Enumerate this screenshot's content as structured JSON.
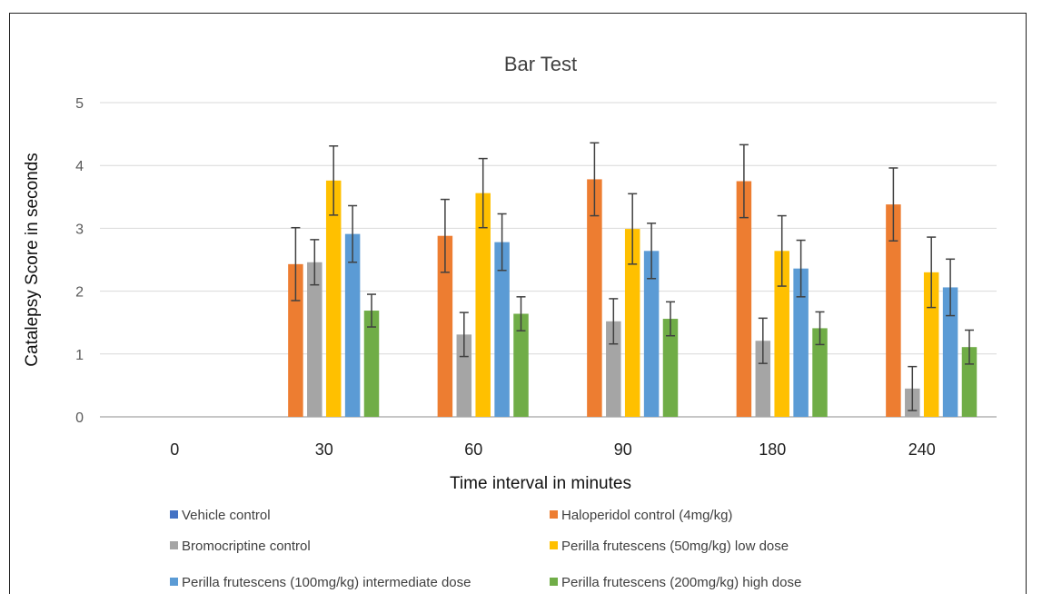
{
  "chart_data": {
    "type": "bar",
    "title": "Bar Test",
    "xlabel": "Time interval in minutes",
    "ylabel": "Catalepsy Score in seconds",
    "ylim": [
      0,
      5
    ],
    "yticks": [
      "0",
      "1",
      "2",
      "3",
      "4",
      "5"
    ],
    "grid": true,
    "legend_position": "bottom",
    "categories": [
      "0",
      "30",
      "60",
      "90",
      "180",
      "240"
    ],
    "series": [
      {
        "name": "Vehicle control",
        "color": "#4472C4",
        "values": [
          0,
          0,
          0,
          0,
          0,
          0
        ],
        "errors": [
          0,
          0,
          0,
          0,
          0,
          0
        ]
      },
      {
        "name": "Haloperidol control (4mg/kg)",
        "color": "#ED7D31",
        "values": [
          0,
          2.43,
          2.88,
          3.78,
          3.75,
          3.38
        ],
        "errors": [
          0,
          0.58,
          0.58,
          0.58,
          0.58,
          0.58
        ]
      },
      {
        "name": "Bromocriptine control",
        "color": "#A5A5A5",
        "values": [
          0,
          2.46,
          1.31,
          1.52,
          1.21,
          0.45
        ],
        "errors": [
          0,
          0.36,
          0.35,
          0.36,
          0.36,
          0.35
        ]
      },
      {
        "name": "Perilla frutescens (50mg/kg) low dose",
        "color": "#FFC000",
        "values": [
          0,
          3.76,
          3.56,
          2.99,
          2.64,
          2.3
        ],
        "errors": [
          0,
          0.55,
          0.55,
          0.56,
          0.56,
          0.56
        ]
      },
      {
        "name": "Perilla frutescens (100mg/kg) intermediate dose",
        "color": "#5B9BD5",
        "values": [
          0,
          2.91,
          2.78,
          2.64,
          2.36,
          2.06
        ],
        "errors": [
          0,
          0.45,
          0.45,
          0.44,
          0.45,
          0.45
        ]
      },
      {
        "name": "Perilla frutescens (200mg/kg) high dose",
        "color": "#70AD47",
        "values": [
          0,
          1.69,
          1.64,
          1.56,
          1.41,
          1.11
        ],
        "errors": [
          0,
          0.26,
          0.27,
          0.27,
          0.26,
          0.27
        ]
      }
    ]
  }
}
